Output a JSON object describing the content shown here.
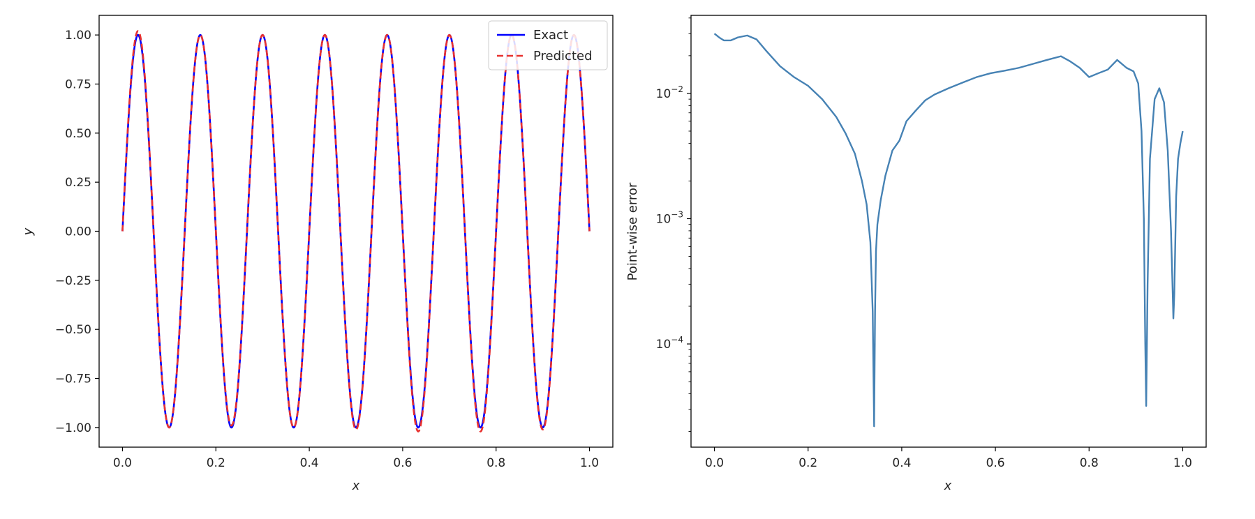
{
  "chart_data": [
    {
      "type": "line",
      "xlabel": "x",
      "ylabel": "y",
      "xlim": [
        -0.05,
        1.05
      ],
      "ylim": [
        -1.1,
        1.1
      ],
      "xticks": [
        0.0,
        0.2,
        0.4,
        0.6,
        0.8,
        1.0
      ],
      "xtick_labels": [
        "0.0",
        "0.2",
        "0.4",
        "0.6",
        "0.8",
        "1.0"
      ],
      "yticks": [
        1.0,
        0.75,
        0.5,
        0.25,
        0.0,
        -0.25,
        -0.5,
        -0.75,
        -1.0
      ],
      "ytick_labels": [
        "1.00",
        "0.75",
        "0.50",
        "0.25",
        "0.00",
        "−0.25",
        "−0.50",
        "−0.75",
        "−1.00"
      ],
      "grid": false,
      "legend_position": "top-right",
      "function": "y = sin(15πx)",
      "x": [
        0.0,
        0.0167,
        0.0333,
        0.05,
        0.0667,
        0.0833,
        0.1,
        0.1167,
        0.1333,
        0.15,
        0.1667,
        0.1833,
        0.2,
        0.2167,
        0.2333,
        0.25,
        0.2667,
        0.2833,
        0.3,
        0.3167,
        0.3333,
        0.35,
        0.3667,
        0.3833,
        0.4,
        0.4167,
        0.4333,
        0.45,
        0.4667,
        0.4833,
        0.5,
        0.5167,
        0.5333,
        0.55,
        0.5667,
        0.5833,
        0.6,
        0.6167,
        0.6333,
        0.65,
        0.6667,
        0.6833,
        0.7,
        0.7167,
        0.7333,
        0.75,
        0.7667,
        0.7833,
        0.8,
        0.8167,
        0.8333,
        0.85,
        0.8667,
        0.8833,
        0.9,
        0.9167,
        0.9333,
        0.95,
        0.9667,
        0.9833,
        1.0
      ],
      "series": [
        {
          "name": "Exact",
          "color": "#0000ff",
          "style": "solid",
          "values": [
            0.0,
            0.707,
            1.0,
            0.707,
            0.0,
            -0.707,
            -1.0,
            -0.707,
            0.0,
            0.707,
            1.0,
            0.707,
            0.0,
            -0.707,
            -1.0,
            -0.707,
            0.0,
            0.707,
            1.0,
            0.707,
            0.0,
            -0.707,
            -1.0,
            -0.707,
            0.0,
            0.707,
            1.0,
            0.707,
            0.0,
            -0.707,
            -1.0,
            -0.707,
            0.0,
            0.707,
            1.0,
            0.707,
            0.0,
            -0.707,
            -1.0,
            -0.707,
            0.0,
            0.707,
            1.0,
            0.707,
            0.0,
            -0.707,
            -1.0,
            -0.707,
            0.0,
            0.707,
            1.0,
            0.707,
            0.0,
            -0.707,
            -1.0,
            -0.707,
            0.0,
            0.707,
            1.0,
            0.707,
            0.0
          ]
        },
        {
          "name": "Predicted",
          "color": "#e8312f",
          "style": "dashed",
          "values": [
            0.0,
            0.71,
            1.02,
            0.71,
            0.0,
            -0.71,
            -1.0,
            -0.71,
            0.0,
            0.71,
            1.0,
            0.71,
            0.0,
            -0.71,
            -0.99,
            -0.71,
            0.0,
            0.71,
            1.0,
            0.71,
            0.0,
            -0.71,
            -1.0,
            -0.71,
            0.0,
            0.71,
            1.0,
            0.71,
            0.0,
            -0.71,
            -1.01,
            -0.71,
            0.0,
            0.71,
            1.0,
            0.71,
            0.0,
            -0.71,
            -1.02,
            -0.71,
            0.0,
            0.71,
            1.0,
            0.71,
            0.0,
            -0.71,
            -1.02,
            -0.71,
            0.0,
            0.71,
            1.0,
            0.71,
            0.0,
            -0.71,
            -1.01,
            -0.71,
            0.0,
            0.71,
            1.0,
            0.71,
            0.0
          ]
        }
      ]
    },
    {
      "type": "line",
      "xlabel": "x",
      "ylabel": "Point-wise error",
      "yscale": "log",
      "xlim": [
        -0.05,
        1.05
      ],
      "ylim": [
        1.5e-05,
        0.042
      ],
      "xticks": [
        0.0,
        0.2,
        0.4,
        0.6,
        0.8,
        1.0
      ],
      "xtick_labels": [
        "0.0",
        "0.2",
        "0.4",
        "0.6",
        "0.8",
        "1.0"
      ],
      "yticks": [
        0.01,
        0.001,
        0.0001
      ],
      "ytick_labels": [
        {
          "base": "10",
          "exp": "−2"
        },
        {
          "base": "10",
          "exp": "−3"
        },
        {
          "base": "10",
          "exp": "−4"
        }
      ],
      "grid": false,
      "series": [
        {
          "color": "#4682b4",
          "x": [
            0.0,
            0.01,
            0.02,
            0.035,
            0.05,
            0.07,
            0.09,
            0.11,
            0.14,
            0.17,
            0.2,
            0.23,
            0.26,
            0.28,
            0.3,
            0.315,
            0.325,
            0.333,
            0.338,
            0.341,
            0.343,
            0.345,
            0.348,
            0.355,
            0.365,
            0.38,
            0.395,
            0.41,
            0.43,
            0.45,
            0.47,
            0.5,
            0.53,
            0.56,
            0.59,
            0.62,
            0.65,
            0.68,
            0.71,
            0.74,
            0.76,
            0.78,
            0.8,
            0.82,
            0.84,
            0.86,
            0.88,
            0.895,
            0.905,
            0.912,
            0.917,
            0.92,
            0.922,
            0.925,
            0.93,
            0.94,
            0.95,
            0.96,
            0.968,
            0.975,
            0.98,
            0.982,
            0.986,
            0.99,
            0.995,
            1.0
          ],
          "values": [
            0.03,
            0.028,
            0.0265,
            0.0265,
            0.028,
            0.029,
            0.027,
            0.022,
            0.0165,
            0.0135,
            0.0115,
            0.009,
            0.0065,
            0.0048,
            0.0033,
            0.002,
            0.0013,
            0.00065,
            0.00018,
            2.2e-05,
            0.00018,
            0.00055,
            0.0009,
            0.0014,
            0.0022,
            0.0035,
            0.0042,
            0.006,
            0.0073,
            0.0088,
            0.0098,
            0.011,
            0.0122,
            0.0135,
            0.0145,
            0.0152,
            0.016,
            0.0172,
            0.0185,
            0.0198,
            0.018,
            0.016,
            0.0135,
            0.0145,
            0.0155,
            0.0185,
            0.016,
            0.015,
            0.012,
            0.005,
            0.001,
            0.0001,
            3.2e-05,
            0.0003,
            0.003,
            0.009,
            0.011,
            0.0085,
            0.0035,
            0.0008,
            0.00016,
            0.00025,
            0.0015,
            0.003,
            0.004,
            0.005
          ]
        }
      ]
    }
  ]
}
